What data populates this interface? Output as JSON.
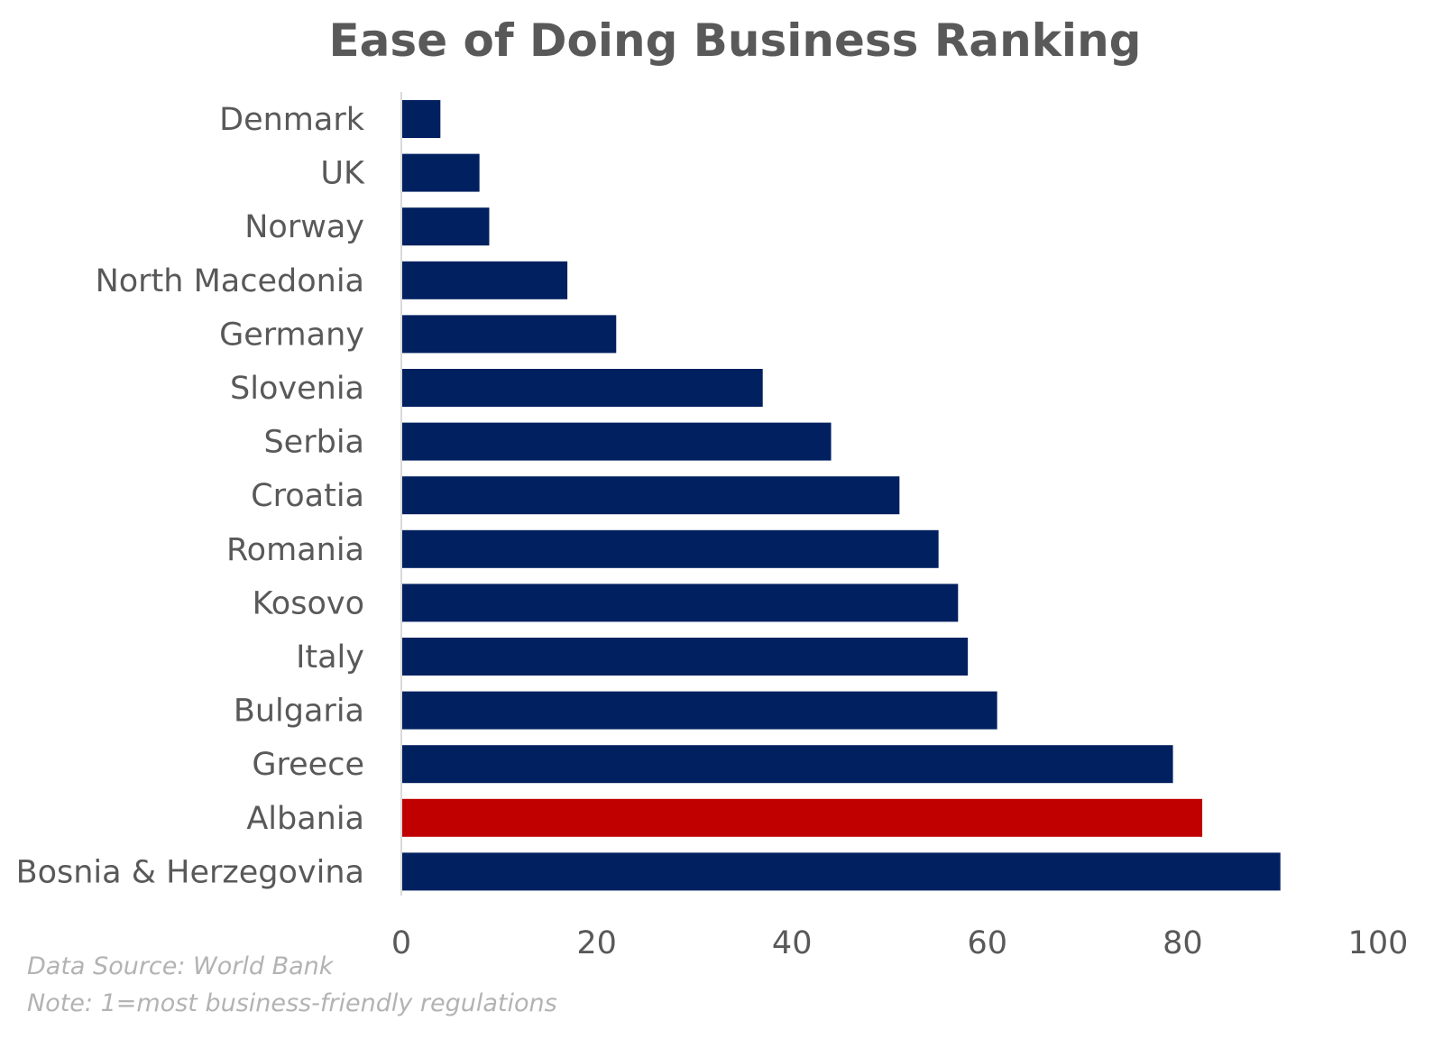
{
  "chart_data": {
    "type": "bar",
    "orientation": "horizontal",
    "title": "Ease of Doing Business Ranking",
    "xlabel": "",
    "ylabel": "",
    "categories": [
      "Denmark",
      "UK",
      "Norway",
      "North Macedonia",
      "Germany",
      "Slovenia",
      "Serbia",
      "Croatia",
      "Romania",
      "Kosovo",
      "Italy",
      "Bulgaria",
      "Greece",
      "Albania",
      "Bosnia & Herzegovina"
    ],
    "values": [
      4,
      8,
      9,
      17,
      22,
      37,
      44,
      51,
      55,
      57,
      58,
      61,
      79,
      82,
      90
    ],
    "xlim": [
      0,
      100
    ],
    "xticks": [
      0,
      20,
      40,
      60,
      80,
      100
    ],
    "grid": false,
    "legend": "none",
    "colors": {
      "default": "#002060",
      "highlight": "#c00000"
    },
    "highlight_category": "Albania"
  },
  "footnotes": {
    "source": "Data Source: World Bank",
    "note": "Note: 1=most business-friendly regulations"
  }
}
